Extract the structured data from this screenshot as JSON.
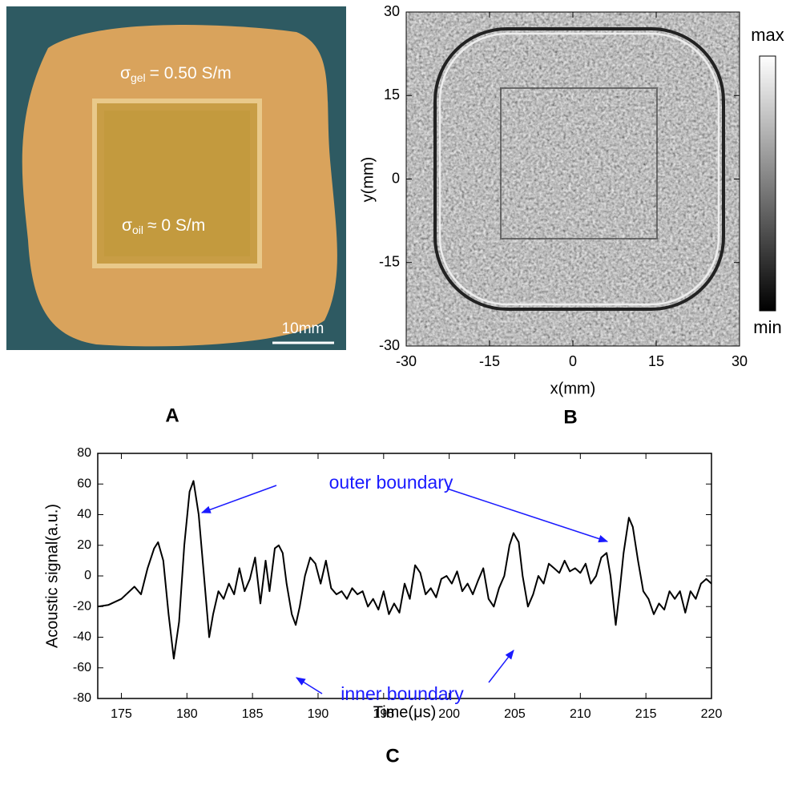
{
  "chart_data": [
    {
      "type": "photo",
      "label": "A",
      "annotations": [
        {
          "symbol": "σ",
          "subscript": "gel",
          "text": "= 0.50 S/m"
        },
        {
          "symbol": "σ",
          "subscript": "oil",
          "text": "≈ 0 S/m"
        }
      ],
      "scale_bar": "10mm"
    },
    {
      "type": "image",
      "label": "B",
      "x_label": "x(mm)",
      "y_label": "y(mm)",
      "xlim": [
        -30,
        30
      ],
      "ylim": [
        -30,
        30
      ],
      "xticks": [
        -30,
        -15,
        0,
        15,
        30
      ],
      "yticks": [
        -30,
        -15,
        0,
        15,
        30
      ],
      "colorbar_labels": [
        "max",
        "min"
      ]
    },
    {
      "type": "line",
      "label": "C",
      "x_label": "Time(μs)",
      "y_label": "Acoustic signal(a.u.)",
      "color": "#000000",
      "xlim": [
        173.2,
        220
      ],
      "ylim": [
        -80,
        80
      ],
      "xticks": [
        175,
        180,
        185,
        190,
        195,
        200,
        205,
        210,
        215,
        220
      ],
      "yticks": [
        -80,
        -60,
        -40,
        -20,
        0,
        20,
        40,
        60,
        80
      ],
      "annotations": [
        "outer boundary",
        "inner boundary"
      ],
      "x": [
        173.2,
        174,
        175,
        176,
        176.5,
        177,
        177.5,
        177.8,
        178.2,
        178.6,
        179,
        179.4,
        179.8,
        180.2,
        180.5,
        180.9,
        181.3,
        181.7,
        182,
        182.4,
        182.8,
        183.2,
        183.6,
        184,
        184.4,
        184.8,
        185.2,
        185.6,
        186,
        186.3,
        186.7,
        187,
        187.3,
        187.6,
        188,
        188.3,
        188.6,
        189,
        189.4,
        189.8,
        190.2,
        190.6,
        191,
        191.4,
        191.8,
        192.2,
        192.6,
        193,
        193.4,
        193.8,
        194.2,
        194.6,
        195,
        195.4,
        195.8,
        196.2,
        196.6,
        197,
        197.4,
        197.8,
        198.2,
        198.6,
        199,
        199.4,
        199.8,
        200.2,
        200.6,
        201,
        201.4,
        201.8,
        202.2,
        202.6,
        203,
        203.4,
        203.8,
        204.2,
        204.6,
        204.9,
        205.3,
        205.6,
        206,
        206.4,
        206.8,
        207.2,
        207.6,
        208,
        208.4,
        208.8,
        209.2,
        209.6,
        210,
        210.4,
        210.8,
        211.2,
        211.6,
        212,
        212.3,
        212.7,
        213,
        213.3,
        213.7,
        214,
        214.4,
        214.8,
        215.2,
        215.6,
        216,
        216.4,
        216.8,
        217.2,
        217.6,
        218,
        218.4,
        218.8,
        219.2,
        219.6,
        220
      ],
      "values": [
        -20,
        -19,
        -15,
        -7,
        -12,
        5,
        18,
        22,
        10,
        -25,
        -54,
        -30,
        20,
        55,
        62,
        40,
        0,
        -40,
        -25,
        -10,
        -15,
        -5,
        -12,
        5,
        -10,
        -2,
        12,
        -18,
        10,
        -10,
        18,
        20,
        15,
        -5,
        -25,
        -32,
        -20,
        0,
        12,
        8,
        -5,
        10,
        -8,
        -12,
        -10,
        -15,
        -8,
        -12,
        -10,
        -20,
        -15,
        -22,
        -10,
        -25,
        -18,
        -24,
        -5,
        -15,
        7,
        2,
        -12,
        -8,
        -14,
        -2,
        0,
        -5,
        3,
        -10,
        -5,
        -12,
        -3,
        5,
        -15,
        -20,
        -8,
        0,
        20,
        28,
        22,
        0,
        -20,
        -12,
        0,
        -5,
        8,
        5,
        2,
        10,
        3,
        5,
        2,
        8,
        -5,
        0,
        12,
        15,
        0,
        -32,
        -10,
        15,
        38,
        32,
        10,
        -10,
        -15,
        -25,
        -18,
        -22,
        -10,
        -15,
        -10,
        -24,
        -10,
        -15,
        -5,
        -2,
        -5
      ]
    }
  ]
}
